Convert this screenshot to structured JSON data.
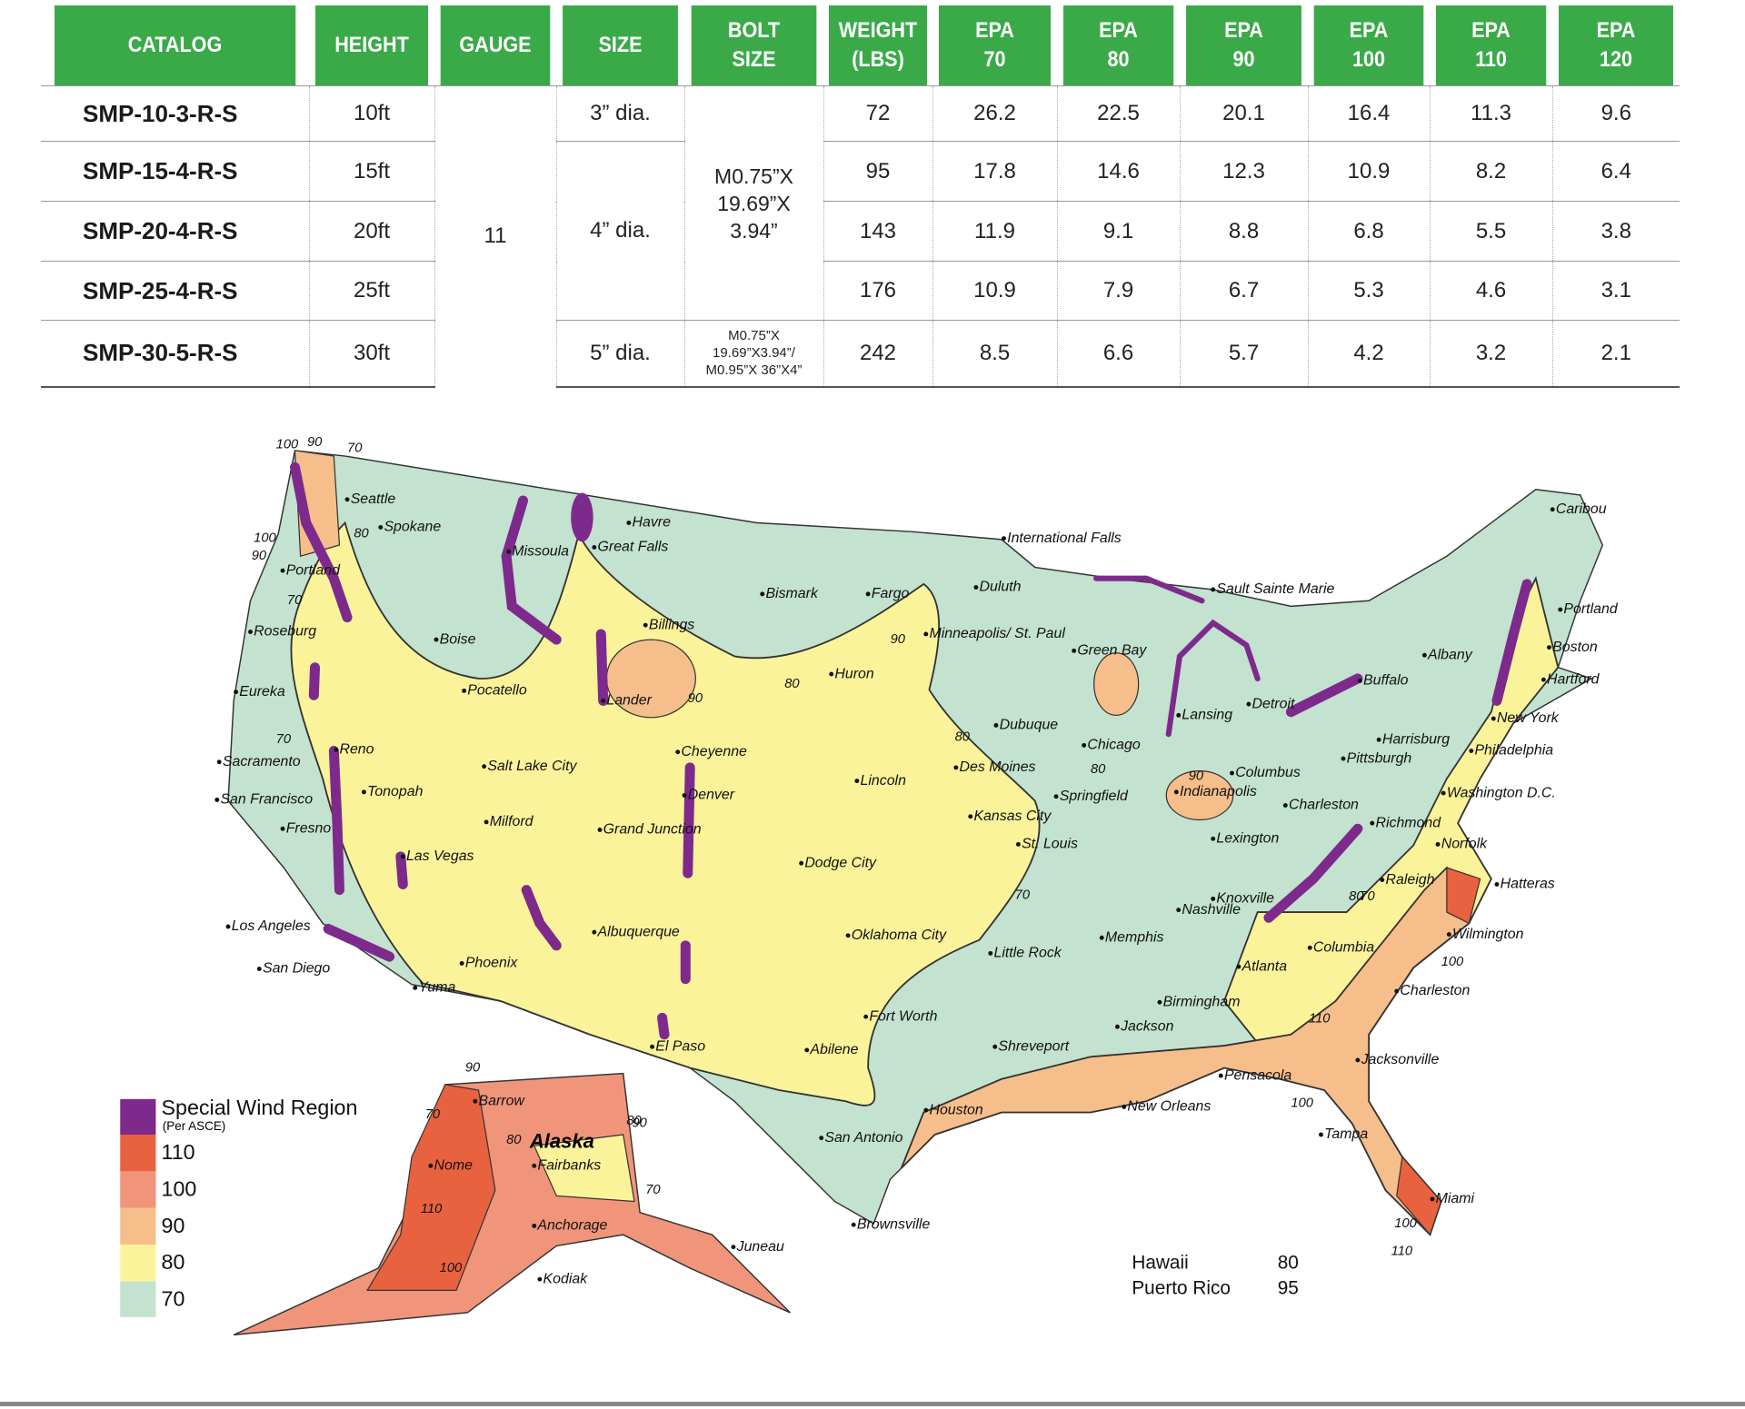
{
  "table": {
    "headers": [
      "CATALOG",
      "HEIGHT",
      "GAUGE",
      "SIZE",
      "BOLT\nSIZE",
      "WEIGHT\n(LBS)",
      "EPA\n70",
      "EPA\n80",
      "EPA\n90",
      "EPA\n100",
      "EPA\n110",
      "EPA\n120"
    ],
    "rows": [
      {
        "catalog": "SMP-10-3-R-S",
        "height": "10ft",
        "weight": 72,
        "epa": [
          26.2,
          22.5,
          20.1,
          16.4,
          11.3,
          9.6
        ]
      },
      {
        "catalog": "SMP-15-4-R-S",
        "height": "15ft",
        "weight": 95,
        "epa": [
          17.8,
          14.6,
          12.3,
          10.9,
          8.2,
          6.4
        ]
      },
      {
        "catalog": "SMP-20-4-R-S",
        "height": "20ft",
        "weight": 143,
        "epa": [
          11.9,
          9.1,
          8.8,
          6.8,
          5.5,
          3.8
        ]
      },
      {
        "catalog": "SMP-25-4-R-S",
        "height": "25ft",
        "weight": 176,
        "epa": [
          10.9,
          7.9,
          6.7,
          5.3,
          4.6,
          3.1
        ]
      },
      {
        "catalog": "SMP-30-5-R-S",
        "height": "30ft",
        "weight": 242,
        "epa": [
          8.5,
          6.6,
          5.7,
          4.2,
          3.2,
          2.1
        ]
      }
    ],
    "gauge": "11",
    "sizes": [
      "3” dia.",
      "4” dia.",
      "5” dia."
    ],
    "bolt_sizes": [
      "M0.75”X\n19.69”X\n3.94”",
      "M0.75”X\n19.69”X3.94”/\nM0.95”X  36”X4”"
    ]
  },
  "map": {
    "legend": {
      "special": "Special Wind Region",
      "special_note": "(Per ASCE)",
      "levels": [
        "110",
        "100",
        "90",
        "80",
        "70"
      ]
    },
    "territories": [
      {
        "name": "Hawaii",
        "speed": "80"
      },
      {
        "name": "Puerto Rico",
        "speed": "95"
      }
    ],
    "region_label": "Alaska",
    "cities": [
      "Seattle",
      "Spokane",
      "Havre",
      "Great Falls",
      "Missoula",
      "Portland",
      "Boise",
      "Billings",
      "Bismark",
      "Fargo",
      "Duluth",
      "International Falls",
      "Sault Sainte Marie",
      "Caribou",
      "Roseburg",
      "Eureka",
      "Pocatello",
      "Lander",
      "Minneapolis/ St. Paul",
      "Huron",
      "Green Bay",
      "Buffalo",
      "Albany",
      "Portland",
      "Boston",
      "Hartford",
      "Reno",
      "Sacramento",
      "San Francisco",
      "Salt Lake City",
      "Cheyenne",
      "Lincoln",
      "Des Moines",
      "Dubuque",
      "Chicago",
      "Lansing",
      "Detroit",
      "Columbus",
      "Pittsburgh",
      "Harrisburg",
      "New York",
      "Philadelphia",
      "Washington D.C.",
      "Tonopah",
      "Milford",
      "Denver",
      "Grand Junction",
      "Fresno",
      "Las Vegas",
      "Kansas City",
      "Springfield",
      "Indianapolis",
      "Charleston",
      "Richmond",
      "Norfolk",
      "St. Louis",
      "Lexington",
      "Dodge City",
      "Raleigh",
      "Hatteras",
      "Knoxville",
      "Nashville",
      "Los Angeles",
      "Albuquerque",
      "Oklahoma City",
      "Memphis",
      "Wilmington",
      "Columbia",
      "Little Rock",
      "Atlanta",
      "Phoenix",
      "San Diego",
      "Yuma",
      "Charleston",
      "Birmingham",
      "Fort Worth",
      "Jackson",
      "El Paso",
      "Abilene",
      "Shreveport",
      "Pensacola",
      "Jacksonville",
      "Houston",
      "New Orleans",
      "Tampa",
      "San Antonio",
      "Brownsville",
      "Miami",
      "Barrow",
      "Nome",
      "Fairbanks",
      "Anchorage",
      "Juneau",
      "Kodiak"
    ],
    "contour_labels": [
      "100",
      "90",
      "70",
      "100",
      "90",
      "80",
      "70",
      "70",
      "90",
      "80",
      "90",
      "80",
      "80",
      "90",
      "70",
      "80",
      "70",
      "100",
      "110",
      "100",
      "80",
      "90",
      "70",
      "110",
      "100",
      "90",
      "80",
      "70",
      "100",
      "110"
    ]
  }
}
